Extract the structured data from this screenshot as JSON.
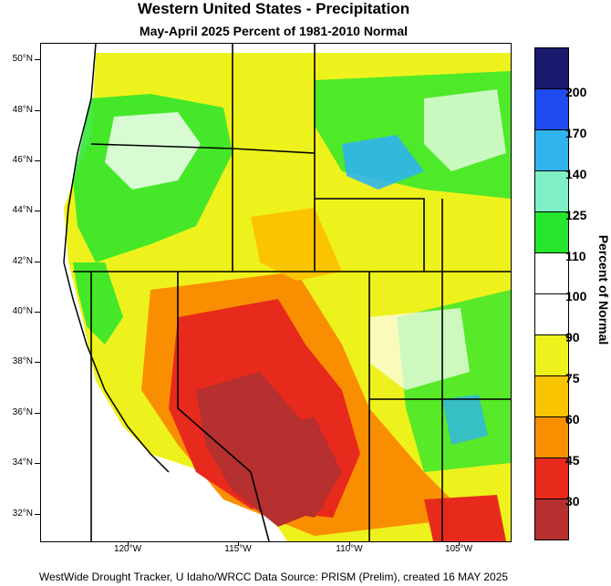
{
  "title": "Western United States - Precipitation",
  "subtitle": "May-April 2025  Percent of 1981-2010 Normal",
  "footer": "WestWide Drought Tracker, U Idaho/WRCC Data Source: PRISM (Prelim), created 16 MAY 2025",
  "map": {
    "lat_labels": [
      "50°N",
      "48°N",
      "46°N",
      "44°N",
      "42°N",
      "40°N",
      "38°N",
      "36°N",
      "34°N",
      "32°N"
    ],
    "lon_labels": [
      "120°W",
      "115°W",
      "110°W",
      "105°W"
    ]
  },
  "legend": {
    "title": "Percent of Normal",
    "labels": [
      "200",
      "170",
      "140",
      "125",
      "110",
      "100",
      "90",
      "75",
      "60",
      "45",
      "30"
    ],
    "colors": [
      "#1a1a6e",
      "#1f4cf0",
      "#2fb4ee",
      "#7fefc6",
      "#26e62c",
      "#ffffff",
      "#ffffff",
      "#eef21c",
      "#fbc400",
      "#f98f00",
      "#e82a1c",
      "#b5302e"
    ]
  }
}
